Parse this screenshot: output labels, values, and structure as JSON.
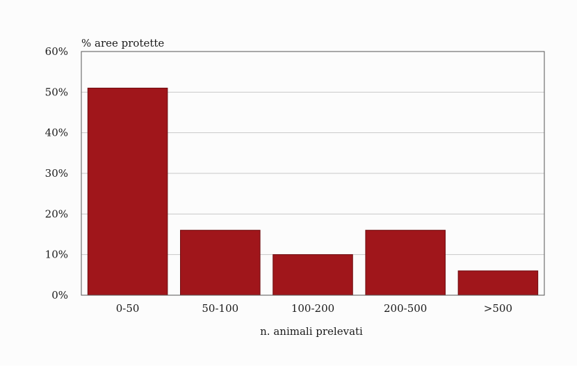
{
  "chart_data": {
    "type": "bar",
    "title": "",
    "ylabel": "% aree protette",
    "xlabel": "n. animali prelevati",
    "categories": [
      "0-50",
      "50-100",
      "100-200",
      "200-500",
      ">500"
    ],
    "values": [
      51,
      16,
      10,
      16,
      6
    ],
    "value_unit": "%",
    "ylim": [
      0,
      60
    ],
    "yticks": [
      "0%",
      "10%",
      "20%",
      "30%",
      "40%",
      "50%",
      "60%"
    ],
    "grid": true,
    "legend": "none",
    "colors": {
      "bar": "#a0161b",
      "bar_edge": "#6e0c10",
      "grid": "#c8c8c8",
      "axis": "#555555"
    }
  }
}
